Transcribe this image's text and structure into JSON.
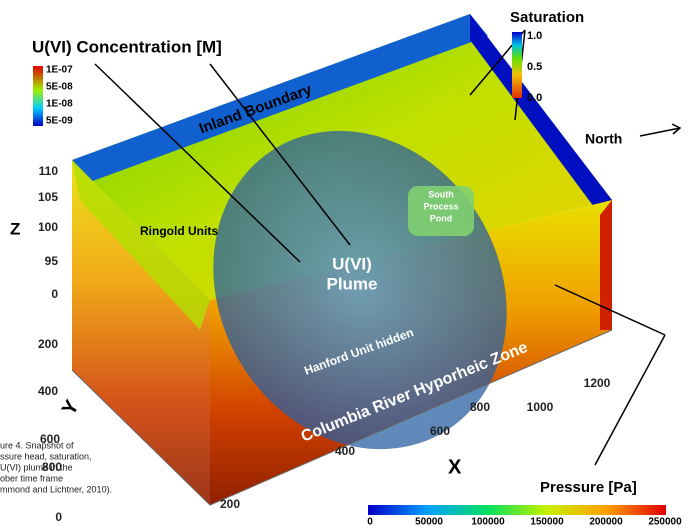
{
  "figure": {
    "concentration_legend": {
      "title": "U(VI) Concentration [M]",
      "labels": [
        "1E-07",
        "5E-08",
        "1E-08",
        "5E-09"
      ]
    },
    "saturation_legend": {
      "title": "Saturation",
      "labels": [
        "1.0",
        "0.5",
        "0.0"
      ]
    },
    "pressure_legend": {
      "title": "Pressure [Pa]",
      "ticks": [
        0,
        50000,
        100000,
        150000,
        200000,
        250000
      ]
    },
    "north": "North",
    "regions": {
      "inland": "Inland Boundary",
      "ringold": "Ringold Units",
      "pond": [
        "South",
        "Process",
        "Pond"
      ],
      "plume": [
        "U(VI)",
        "Plume"
      ],
      "hanford": "Hanford Unit hidden",
      "river": "Columbia River Hyporheic Zone"
    },
    "z_axis": {
      "label": "Z",
      "ticks": [
        110,
        105,
        100,
        95,
        0
      ]
    },
    "y_axis": {
      "label": "Y",
      "ticks": [
        200,
        400,
        600,
        800,
        0
      ]
    },
    "x_axis": {
      "label": "X",
      "ticks": [
        200,
        400,
        600,
        800,
        1000,
        1200
      ]
    },
    "caption": [
      "ure 4.  Snapshot of",
      "ssure head, saturation,",
      "U(VI) plume in the",
      "ober time frame",
      "mmond and Lichtner, 2010)."
    ]
  }
}
